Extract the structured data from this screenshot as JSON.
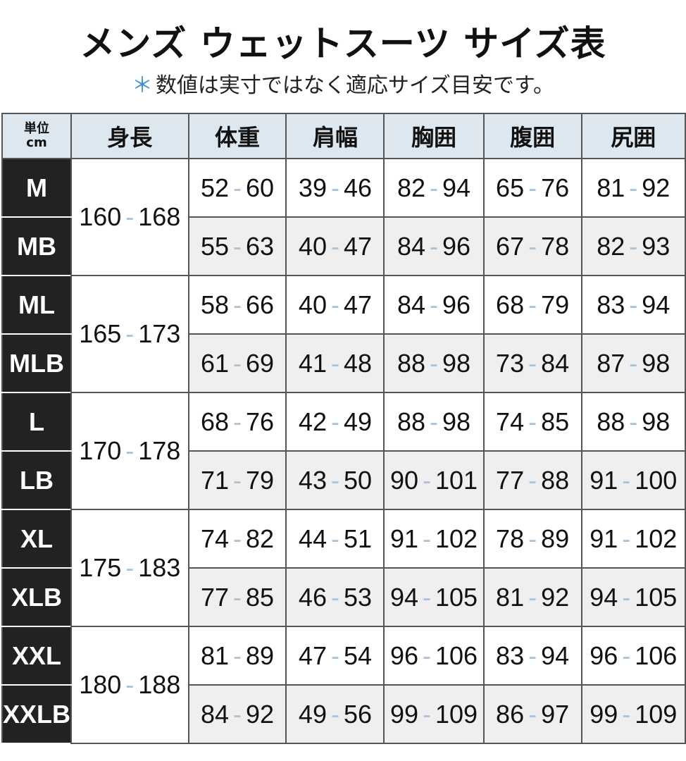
{
  "title": "メンズ ウェットスーツ サイズ表",
  "subtitle": {
    "marker": "＊",
    "text": "数値は実寸ではなく適応サイズ目安です。"
  },
  "colors": {
    "header_bg": "#dde7ef",
    "size_bg": "#222222",
    "alt_row_bg": "#efefef",
    "dash": "#a9c3d8",
    "asterisk": "#3d8fd6"
  },
  "table": {
    "unit_label": [
      "単位",
      "cm"
    ],
    "headers": [
      "身長",
      "体重",
      "肩幅",
      "胸囲",
      "腹囲",
      "尻囲"
    ],
    "groups": [
      {
        "height": [
          "160",
          "168"
        ],
        "rows": [
          {
            "size": "M",
            "values": [
              [
                "52",
                "60"
              ],
              [
                "39",
                "46"
              ],
              [
                "82",
                "94"
              ],
              [
                "65",
                "76"
              ],
              [
                "81",
                "92"
              ]
            ]
          },
          {
            "size": "MB",
            "values": [
              [
                "55",
                "63"
              ],
              [
                "40",
                "47"
              ],
              [
                "84",
                "96"
              ],
              [
                "67",
                "78"
              ],
              [
                "82",
                "93"
              ]
            ]
          }
        ]
      },
      {
        "height": [
          "165",
          "173"
        ],
        "rows": [
          {
            "size": "ML",
            "values": [
              [
                "58",
                "66"
              ],
              [
                "40",
                "47"
              ],
              [
                "84",
                "96"
              ],
              [
                "68",
                "79"
              ],
              [
                "83",
                "94"
              ]
            ]
          },
          {
            "size": "MLB",
            "values": [
              [
                "61",
                "69"
              ],
              [
                "41",
                "48"
              ],
              [
                "88",
                "98"
              ],
              [
                "73",
                "84"
              ],
              [
                "87",
                "98"
              ]
            ]
          }
        ]
      },
      {
        "height": [
          "170",
          "178"
        ],
        "rows": [
          {
            "size": "L",
            "values": [
              [
                "68",
                "76"
              ],
              [
                "42",
                "49"
              ],
              [
                "88",
                "98"
              ],
              [
                "74",
                "85"
              ],
              [
                "88",
                "98"
              ]
            ]
          },
          {
            "size": "LB",
            "values": [
              [
                "71",
                "79"
              ],
              [
                "43",
                "50"
              ],
              [
                "90",
                "101"
              ],
              [
                "77",
                "88"
              ],
              [
                "91",
                "100"
              ]
            ]
          }
        ]
      },
      {
        "height": [
          "175",
          "183"
        ],
        "rows": [
          {
            "size": "XL",
            "values": [
              [
                "74",
                "82"
              ],
              [
                "44",
                "51"
              ],
              [
                "91",
                "102"
              ],
              [
                "78",
                "89"
              ],
              [
                "91",
                "102"
              ]
            ]
          },
          {
            "size": "XLB",
            "values": [
              [
                "77",
                "85"
              ],
              [
                "46",
                "53"
              ],
              [
                "94",
                "105"
              ],
              [
                "81",
                "92"
              ],
              [
                "94",
                "105"
              ]
            ]
          }
        ]
      },
      {
        "height": [
          "180",
          "188"
        ],
        "rows": [
          {
            "size": "XXL",
            "values": [
              [
                "81",
                "89"
              ],
              [
                "47",
                "54"
              ],
              [
                "96",
                "106"
              ],
              [
                "83",
                "94"
              ],
              [
                "96",
                "106"
              ]
            ]
          },
          {
            "size": "XXLB",
            "values": [
              [
                "84",
                "92"
              ],
              [
                "49",
                "56"
              ],
              [
                "99",
                "109"
              ],
              [
                "86",
                "97"
              ],
              [
                "99",
                "109"
              ]
            ]
          }
        ]
      }
    ]
  }
}
